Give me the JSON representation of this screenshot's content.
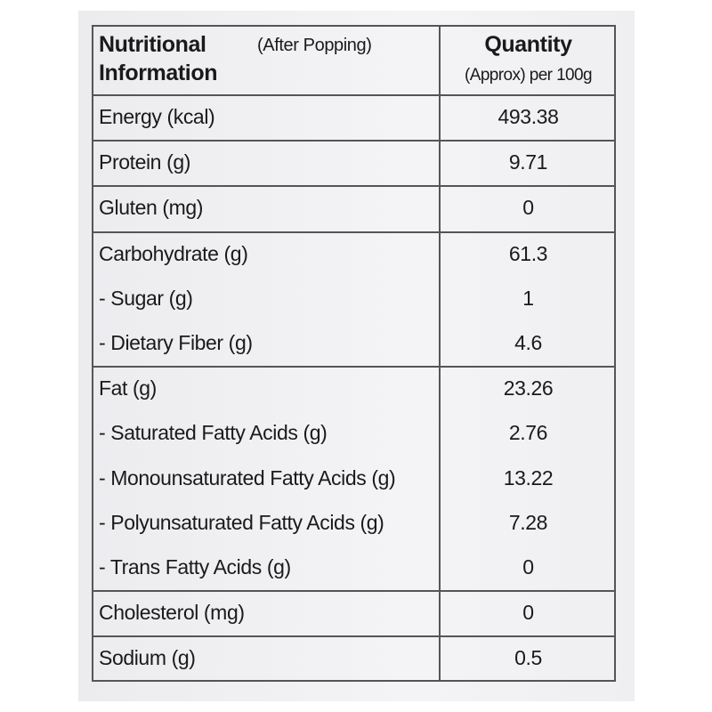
{
  "header": {
    "title": [
      "Nutritional",
      "Information"
    ],
    "note": "(After Popping)",
    "quantity": "Quantity",
    "quantity_note": "(Approx) per 100g"
  },
  "groups": [
    {
      "rows": [
        [
          "Energy (kcal)",
          "493.38"
        ]
      ]
    },
    {
      "rows": [
        [
          "Protein (g)",
          "9.71"
        ]
      ]
    },
    {
      "rows": [
        [
          "Gluten (mg)",
          "0"
        ]
      ]
    },
    {
      "rows": [
        [
          "Carbohydrate (g)",
          "61.3"
        ],
        [
          "- Sugar (g)",
          "1"
        ],
        [
          "- Dietary Fiber (g)",
          "4.6"
        ]
      ]
    },
    {
      "rows": [
        [
          "Fat (g)",
          "23.26"
        ],
        [
          "- Saturated Fatty Acids (g)",
          "2.76"
        ],
        [
          "- Monounsaturated Fatty Acids (g)",
          "13.22"
        ],
        [
          "- Polyunsaturated Fatty Acids (g)",
          "7.28"
        ],
        [
          "- Trans Fatty Acids (g)",
          "0"
        ]
      ]
    },
    {
      "rows": [
        [
          "Cholesterol (mg)",
          "0"
        ]
      ]
    },
    {
      "rows": [
        [
          "Sodium (g)",
          "0.5"
        ]
      ]
    }
  ]
}
